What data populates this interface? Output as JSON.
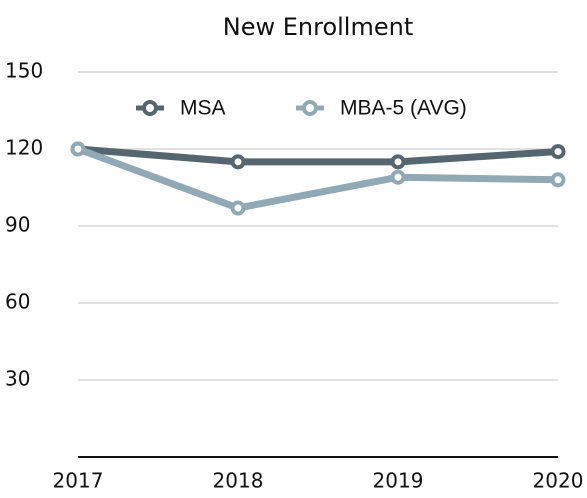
{
  "chart_data": {
    "type": "line",
    "title": "New Enrollment",
    "categories": [
      "2017",
      "2018",
      "2019",
      "2020"
    ],
    "series": [
      {
        "name": "MSA",
        "color": "#566670",
        "values": [
          120,
          115,
          115,
          119
        ]
      },
      {
        "name": "MBA-5 (AVG)",
        "color": "#91a9b4",
        "values": [
          120,
          97,
          109,
          108
        ]
      }
    ],
    "ylim": [
      0,
      150
    ],
    "yticks": [
      30,
      60,
      90,
      120,
      150
    ],
    "grid": true,
    "legend": "top"
  }
}
